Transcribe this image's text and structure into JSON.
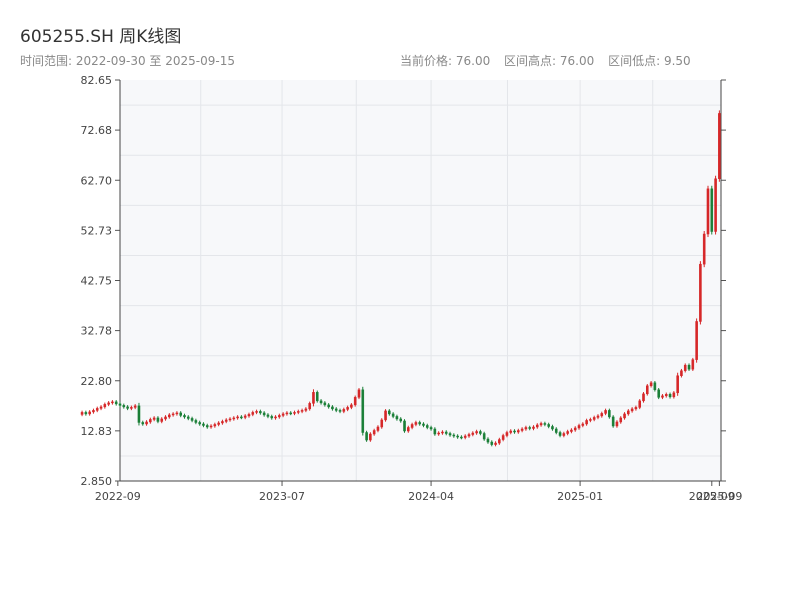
{
  "header": {
    "title": "605255.SH 周K线图",
    "subtitle": "时间范围: 2022-09-30 至 2025-09-15",
    "stat_current": "当前价格: 76.00",
    "stat_high": "区间高点: 76.00",
    "stat_low": "区间低点: 9.50"
  },
  "chart_data": {
    "type": "candlestick",
    "title": "605255.SH 周K线图",
    "xlabel": "",
    "ylabel": "",
    "ylim": [
      2.85,
      82.65
    ],
    "yticks": [
      "82.65",
      "72.68",
      "62.70",
      "52.73",
      "42.75",
      "32.78",
      "22.80",
      "12.83",
      "2.850"
    ],
    "xticks": [
      {
        "label": "2022-09",
        "date": "2022-09-01"
      },
      {
        "label": "2023-07",
        "date": "2023-07-01"
      },
      {
        "label": "2024-04",
        "date": "2024-04-01"
      },
      {
        "label": "2025-01",
        "date": "2025-01-01"
      },
      {
        "label": "2025-09",
        "date": "2025-09-01"
      },
      {
        "label": "2025-09",
        "date": "2025-09-15"
      }
    ],
    "date_range": [
      "2022-09-30",
      "2025-09-15"
    ],
    "up_color": "#d62728",
    "down_color": "#1a7f37",
    "closes": [
      16.5,
      16.2,
      16.6,
      16.9,
      17.3,
      17.6,
      18.1,
      18.4,
      18.6,
      18.2,
      17.9,
      17.6,
      17.3,
      17.5,
      17.8,
      14.5,
      14.2,
      14.6,
      15.1,
      15.4,
      14.7,
      15.2,
      15.6,
      16.0,
      16.2,
      16.4,
      15.9,
      15.6,
      15.3,
      14.9,
      14.5,
      14.2,
      13.9,
      13.6,
      13.8,
      14.1,
      14.4,
      14.7,
      15.0,
      15.2,
      15.4,
      15.6,
      15.5,
      15.8,
      16.1,
      16.5,
      16.7,
      16.4,
      16.0,
      15.7,
      15.4,
      15.6,
      15.9,
      16.2,
      16.4,
      16.3,
      16.5,
      16.7,
      16.9,
      17.2,
      18.3,
      20.5,
      18.8,
      18.4,
      18.0,
      17.6,
      17.2,
      16.9,
      16.7,
      17.1,
      17.5,
      18.0,
      19.5,
      21.0,
      12.5,
      11.0,
      12.2,
      12.9,
      13.6,
      15.0,
      16.8,
      16.2,
      15.7,
      15.2,
      14.8,
      12.8,
      13.5,
      14.1,
      14.5,
      14.2,
      13.9,
      13.5,
      13.2,
      12.2,
      12.4,
      12.6,
      12.3,
      12.0,
      11.8,
      11.6,
      11.5,
      11.8,
      12.1,
      12.4,
      12.7,
      12.3,
      11.2,
      10.6,
      10.1,
      10.4,
      11.1,
      11.9,
      12.5,
      12.8,
      12.6,
      12.9,
      13.2,
      13.5,
      13.3,
      13.6,
      14.0,
      14.3,
      14.1,
      13.7,
      13.2,
      12.5,
      11.9,
      12.3,
      12.7,
      13.0,
      13.4,
      13.9,
      14.2,
      14.9,
      15.1,
      15.5,
      15.8,
      16.3,
      16.9,
      15.6,
      13.8,
      14.6,
      15.4,
      16.2,
      16.8,
      17.2,
      17.5,
      18.8,
      20.2,
      21.8,
      22.4,
      21.0,
      19.5,
      19.8,
      20.1,
      19.6,
      20.4,
      23.8,
      24.8,
      25.9,
      25.1,
      27.0,
      34.6,
      46.0,
      52.0,
      61.0,
      52.5,
      63.0,
      76.0
    ]
  }
}
